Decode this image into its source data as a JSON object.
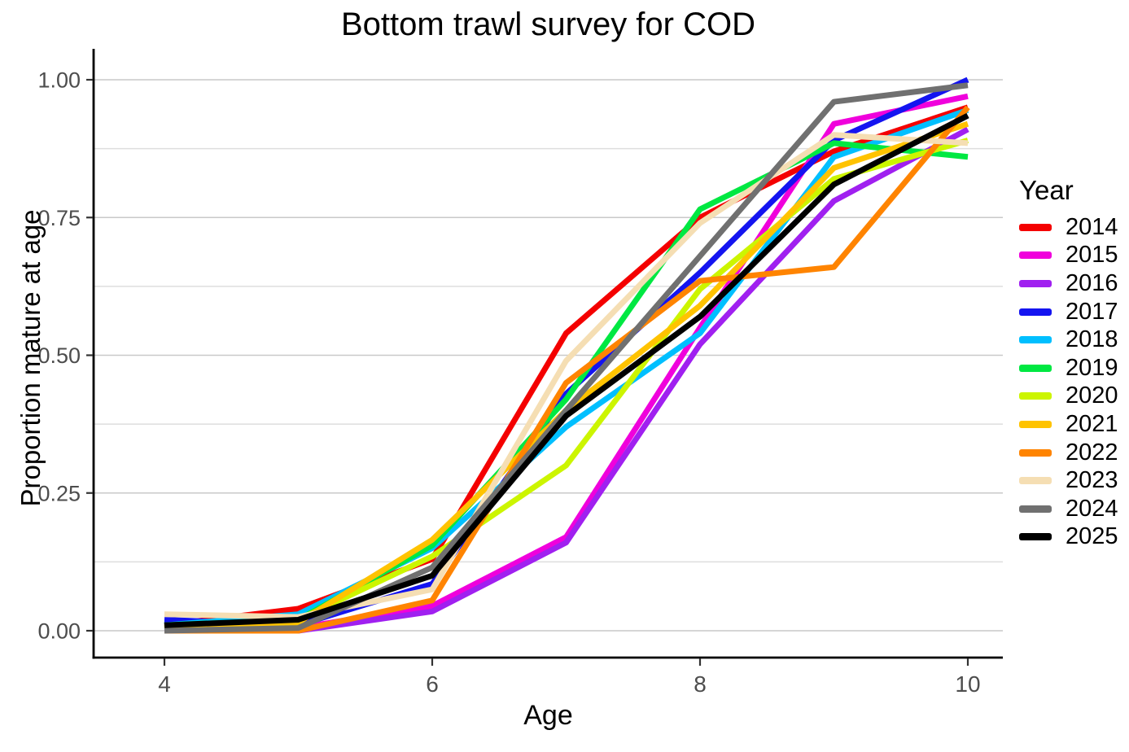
{
  "title": "Bottom trawl survey for COD",
  "chart_data": {
    "type": "line",
    "title": "Bottom trawl survey for COD",
    "xlabel": "Age",
    "ylabel": "Proportion mature at age",
    "legend_title": "Year",
    "legend_position": "right",
    "grid": "horizontal-only",
    "background": "#ffffff",
    "x": [
      4,
      5,
      6,
      7,
      8,
      9,
      10
    ],
    "xlim": [
      3.47,
      10.26
    ],
    "ylim": [
      -0.05,
      1.05
    ],
    "x_ticks": [
      {
        "value": 4,
        "label": "4"
      },
      {
        "value": 6,
        "label": "6"
      },
      {
        "value": 8,
        "label": "8"
      },
      {
        "value": 10,
        "label": "10"
      }
    ],
    "y_ticks": [
      {
        "value": 0.0,
        "label": "0.00"
      },
      {
        "value": 0.25,
        "label": "0.25"
      },
      {
        "value": 0.5,
        "label": "0.50"
      },
      {
        "value": 0.75,
        "label": "0.75"
      },
      {
        "value": 1.0,
        "label": "1.00"
      }
    ],
    "y_minor_ticks": [
      0.125,
      0.375,
      0.625,
      0.875
    ],
    "series": [
      {
        "name": "2014",
        "color": "#F40000",
        "values": [
          0.01,
          0.04,
          0.13,
          0.54,
          0.75,
          0.87,
          0.95
        ]
      },
      {
        "name": "2015",
        "color": "#F000DC",
        "values": [
          0.015,
          0.005,
          0.045,
          0.17,
          0.55,
          0.92,
          0.97
        ]
      },
      {
        "name": "2016",
        "color": "#A020F0",
        "values": [
          0.005,
          0.0,
          0.035,
          0.16,
          0.52,
          0.78,
          0.91
        ]
      },
      {
        "name": "2017",
        "color": "#1414F0",
        "values": [
          0.02,
          0.01,
          0.085,
          0.43,
          0.65,
          0.89,
          1.0
        ]
      },
      {
        "name": "2018",
        "color": "#00BFFF",
        "values": [
          0.01,
          0.03,
          0.15,
          0.37,
          0.54,
          0.86,
          0.945
        ]
      },
      {
        "name": "2019",
        "color": "#00E842",
        "values": [
          0.01,
          0.02,
          0.155,
          0.42,
          0.765,
          0.885,
          0.86
        ]
      },
      {
        "name": "2020",
        "color": "#CCF500",
        "values": [
          0.005,
          0.02,
          0.135,
          0.3,
          0.62,
          0.82,
          0.89
        ]
      },
      {
        "name": "2021",
        "color": "#FFC300",
        "values": [
          0.005,
          0.015,
          0.165,
          0.4,
          0.59,
          0.84,
          0.92
        ]
      },
      {
        "name": "2022",
        "color": "#FF8400",
        "values": [
          0.0,
          0.0,
          0.055,
          0.45,
          0.635,
          0.66,
          0.95
        ]
      },
      {
        "name": "2023",
        "color": "#F5DEB3",
        "values": [
          0.03,
          0.025,
          0.075,
          0.49,
          0.74,
          0.9,
          0.885
        ]
      },
      {
        "name": "2024",
        "color": "#707070",
        "values": [
          0.0,
          0.005,
          0.115,
          0.4,
          0.68,
          0.96,
          0.99
        ]
      },
      {
        "name": "2025",
        "color": "#000000",
        "values": [
          0.01,
          0.02,
          0.1,
          0.39,
          0.57,
          0.81,
          0.935
        ]
      }
    ]
  },
  "style_colors": {
    "grid_major": "#C9C9C9",
    "grid_minor": "#DEDEDE",
    "axis_line": "#000000",
    "tick_mark": "#333333",
    "tick_label": "#4D4D4D"
  }
}
